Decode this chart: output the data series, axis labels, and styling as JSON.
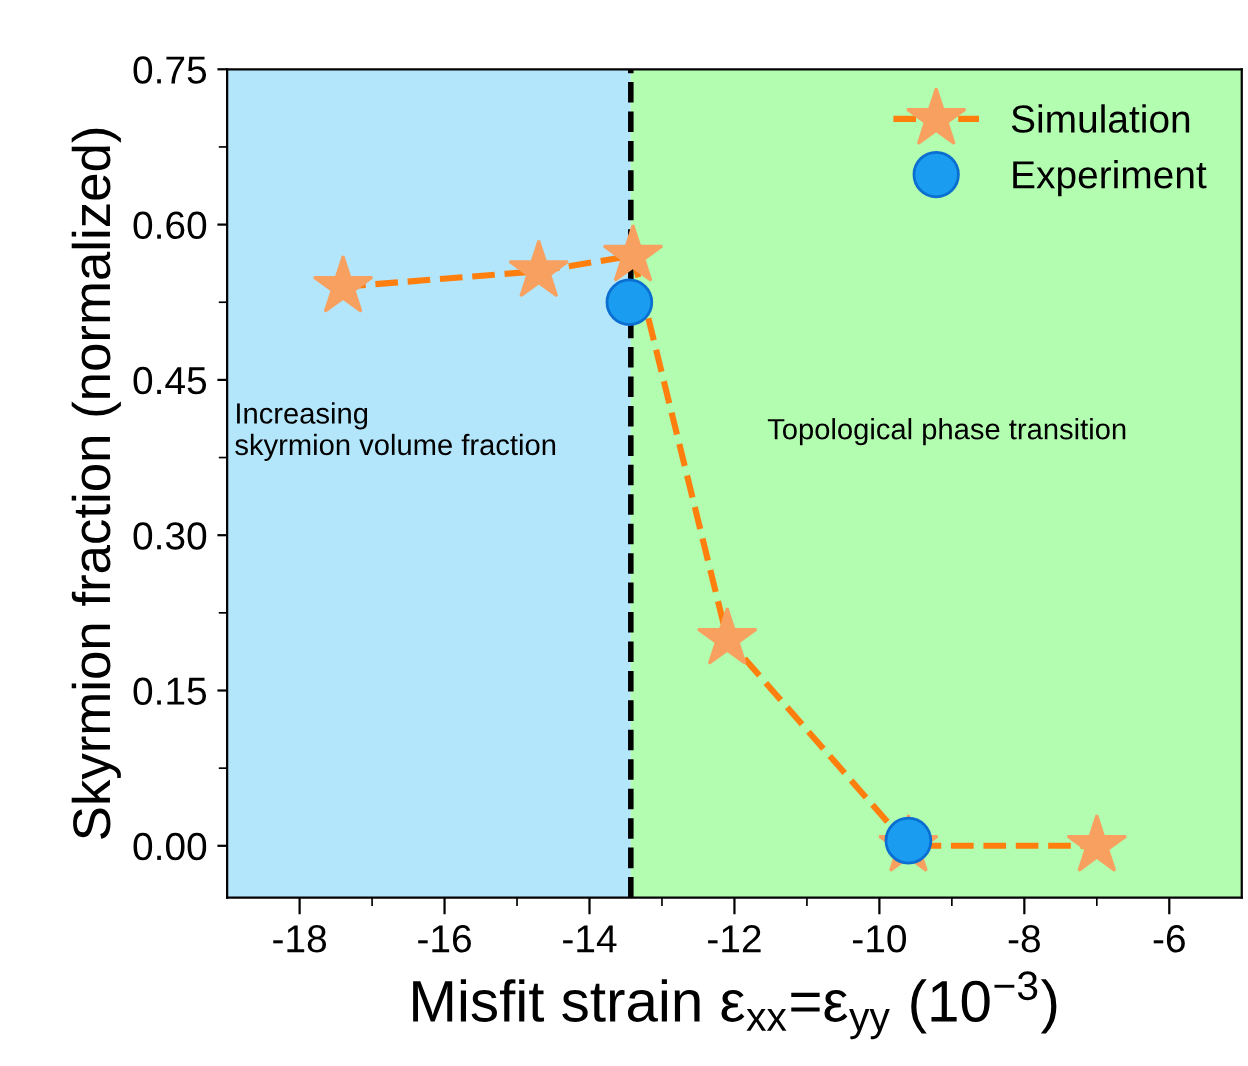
{
  "chart_data": {
    "type": "line",
    "xlabel": "Misfit strain ε$_{xx}$=ε$_{yy}$ (10$^{−3}$)",
    "ylabel": "Skyrmion fraction (normalized)",
    "xlim": [
      -19,
      -5
    ],
    "xticks": [
      -18,
      -16,
      -14,
      -12,
      -10,
      -8,
      -6
    ],
    "ylim": [
      -0.05,
      0.75
    ],
    "yticks": [
      {
        "value": 0,
        "label": "0.00"
      },
      {
        "value": 0.15,
        "label": "0.15"
      },
      {
        "value": 0.3,
        "label": "0.30"
      },
      {
        "value": 0.45,
        "label": "0.45"
      },
      {
        "value": 0.6,
        "label": "0.60"
      },
      {
        "value": 0.75,
        "label": "0.75"
      }
    ],
    "grid": false,
    "legend": "top right",
    "series": [
      {
        "name": "Simulation",
        "color": "#f7a05f",
        "marker": "star",
        "line_style": "dashed",
        "x": [
          -17.4,
          -14.7,
          -13.4,
          -12.1,
          -9.6,
          -7.0
        ],
        "values": [
          0.54,
          0.555,
          0.57,
          0.2,
          0,
          0
        ]
      },
      {
        "name": "Experiment",
        "type": "scatter",
        "color": "#1a9cf0",
        "marker": "circle",
        "x": [
          -13.45,
          -9.6
        ],
        "values": [
          0.525,
          0.005
        ]
      }
    ],
    "ref_lines": [
      {
        "axis": "x",
        "value": -13.43,
        "color": "#000000",
        "line_style": "dashed"
      }
    ],
    "bands": [
      {
        "axis": "x",
        "from": -19,
        "to": -13.43,
        "color": "#b3e5fb",
        "label": "Increasing\nskyrmion volume fraction"
      },
      {
        "axis": "x",
        "from": -13.43,
        "to": -5,
        "color": "#b3fdb0",
        "label": "Topological phase transition"
      }
    ]
  }
}
